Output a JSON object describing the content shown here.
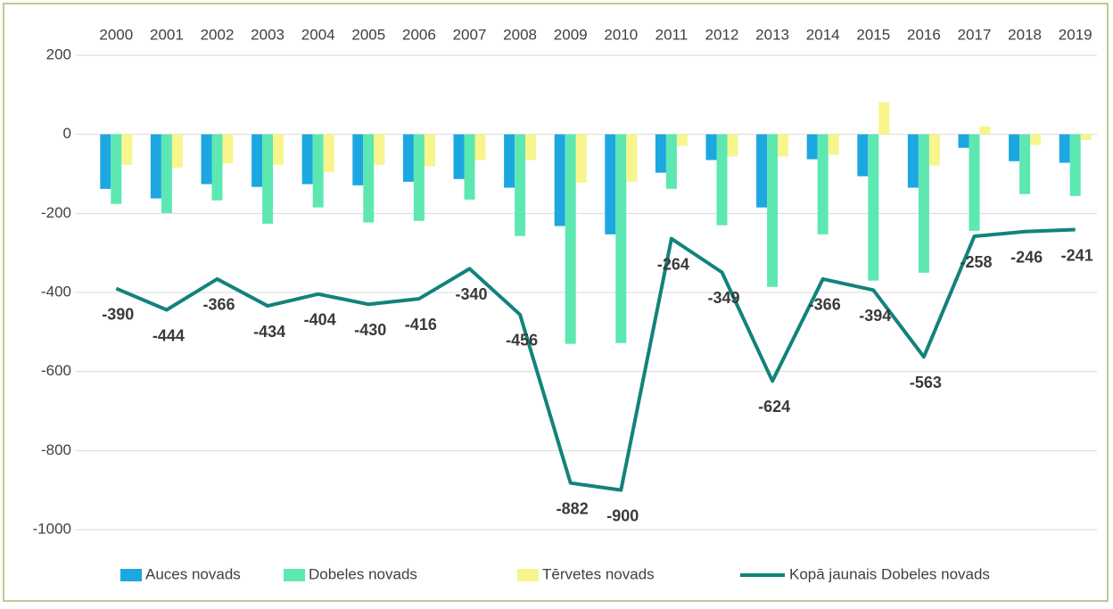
{
  "chart_data": {
    "type": "bar_line",
    "categories": [
      "2000",
      "2001",
      "2002",
      "2003",
      "2004",
      "2005",
      "2006",
      "2007",
      "2008",
      "2009",
      "2010",
      "2011",
      "2012",
      "2013",
      "2014",
      "2015",
      "2016",
      "2017",
      "2018",
      "2019"
    ],
    "series": [
      {
        "name": "Auces novads",
        "type": "bar",
        "color": "#1ca7e0",
        "values": [
          -138,
          -162,
          -126,
          -133,
          -126,
          -129,
          -120,
          -113,
          -135,
          -232,
          -253,
          -97,
          -65,
          -185,
          -63,
          -106,
          -135,
          -34,
          -68,
          -72
        ]
      },
      {
        "name": "Dobeles novads",
        "type": "bar",
        "color": "#5de8b2",
        "values": [
          -176,
          -199,
          -167,
          -226,
          -185,
          -223,
          -219,
          -165,
          -257,
          -530,
          -528,
          -138,
          -230,
          -386,
          -253,
          -370,
          -350,
          -244,
          -151,
          -156
        ]
      },
      {
        "name": "Tērvetes novads",
        "type": "bar",
        "color": "#f7f58c",
        "values": [
          -77,
          -84,
          -74,
          -77,
          -95,
          -77,
          -81,
          -65,
          -65,
          -122,
          -120,
          -29,
          -56,
          -56,
          -52,
          81,
          -79,
          20,
          -27,
          -14
        ]
      },
      {
        "name": "Kopā jaunais Dobeles novads",
        "type": "line",
        "color": "#12837a",
        "values": [
          -390,
          -444,
          -366,
          -434,
          -404,
          -430,
          -416,
          -340,
          -456,
          -882,
          -900,
          -264,
          -349,
          -624,
          -366,
          -394,
          -563,
          -258,
          -246,
          -241
        ]
      }
    ],
    "ylim": [
      -1000,
      200
    ],
    "yticks": [
      -1000,
      -800,
      -600,
      -400,
      -200,
      0,
      200
    ],
    "grid": true,
    "legend": "bottom"
  }
}
